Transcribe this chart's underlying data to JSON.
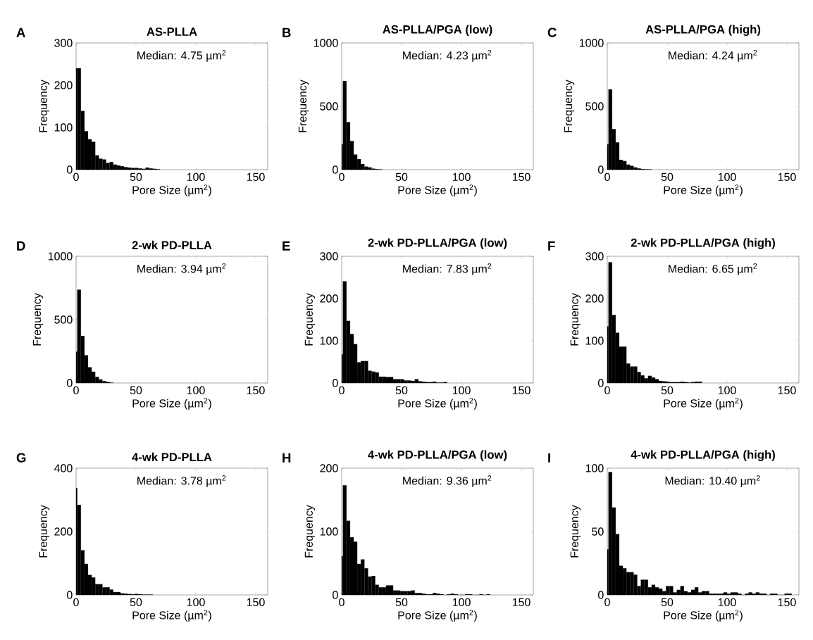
{
  "chart_data": [
    {
      "type": "histogram",
      "title": "AS-PLLA",
      "xlabel": "Pore Size (µm$^{2}$)",
      "ylabel": "Frequency",
      "annotations": [
        "A",
        "Median: 4.75 µm$^{2}$"
      ],
      "color": "#000000",
      "xlim": [
        0,
        160
      ],
      "ylim": [
        0,
        300
      ],
      "xticks": [
        0,
        50,
        100,
        150
      ],
      "yticks": [
        0,
        100,
        200,
        300
      ],
      "bins": [
        0,
        1,
        4,
        7,
        10,
        13,
        16,
        19,
        22,
        25,
        28,
        31,
        34,
        37,
        40,
        43,
        46,
        49,
        52,
        55,
        58,
        61,
        64,
        67,
        70
      ],
      "values": [
        240,
        240,
        139,
        91,
        72,
        66,
        34,
        26,
        24,
        16,
        18,
        12,
        10,
        8,
        6,
        5,
        4,
        4,
        3,
        2,
        5,
        3,
        2,
        1
      ]
    },
    {
      "type": "histogram",
      "title": "AS-PLLA/PGA (low)",
      "xlabel": "Pore Size (µm$^{2}$)",
      "ylabel": "Frequency",
      "annotations": [
        "B",
        "Median: 4.23 µm$^{2}$"
      ],
      "color": "#000000",
      "xlim": [
        0,
        160
      ],
      "ylim": [
        0,
        1000
      ],
      "xticks": [
        0,
        50,
        100,
        150
      ],
      "yticks": [
        0,
        500,
        1000
      ],
      "bins": [
        0,
        1,
        4,
        7,
        10,
        13,
        16,
        19,
        22,
        25,
        28,
        31,
        34
      ],
      "values": [
        200,
        700,
        375,
        226,
        119,
        83,
        44,
        24,
        18,
        8,
        4,
        2
      ]
    },
    {
      "type": "histogram",
      "title": "AS-PLLA/PGA (high)",
      "xlabel": "Pore Size (µm$^{2}$)",
      "ylabel": "Frequency",
      "annotations": [
        "C",
        "Median: 4.24 µm$^{2}$"
      ],
      "color": "#000000",
      "xlim": [
        0,
        160
      ],
      "ylim": [
        0,
        1000
      ],
      "xticks": [
        0,
        50,
        100,
        150
      ],
      "yticks": [
        0,
        500,
        1000
      ],
      "bins": [
        0,
        1,
        4,
        7,
        10,
        13,
        16,
        19,
        22,
        25,
        28,
        31,
        34,
        37
      ],
      "values": [
        200,
        634,
        320,
        215,
        77,
        68,
        40,
        30,
        18,
        10,
        5,
        3,
        2
      ]
    },
    {
      "type": "histogram",
      "title": "2-wk PD-PLLA",
      "xlabel": "Pore Size (µm$^{2}$)",
      "ylabel": "Frequency",
      "annotations": [
        "D",
        "Median: 3.94 µm$^{2}$"
      ],
      "color": "#000000",
      "xlim": [
        0,
        160
      ],
      "ylim": [
        0,
        1000
      ],
      "xticks": [
        0,
        50,
        100,
        150
      ],
      "yticks": [
        0,
        500,
        1000
      ],
      "bins": [
        0,
        1,
        4,
        7,
        10,
        13,
        16,
        19,
        22,
        25,
        28,
        31
      ],
      "values": [
        247,
        736,
        371,
        219,
        124,
        89,
        48,
        28,
        15,
        8,
        3
      ]
    },
    {
      "type": "histogram",
      "title": "2-wk PD-PLLA/PGA (low)",
      "xlabel": "Pore Size (µm$^{2}$)",
      "ylabel": "Frequency",
      "annotations": [
        "E",
        "Median: 7.83 µm$^{2}$"
      ],
      "color": "#000000",
      "xlim": [
        0,
        160
      ],
      "ylim": [
        0,
        300
      ],
      "xticks": [
        0,
        50,
        100,
        150
      ],
      "yticks": [
        0,
        100,
        200,
        300
      ],
      "bins": [
        0,
        1,
        4,
        7,
        10,
        13,
        16,
        19,
        22,
        25,
        28,
        31,
        34,
        37,
        40,
        43,
        46,
        49,
        52,
        55,
        58,
        61,
        64,
        67,
        70,
        73,
        76,
        79,
        82,
        85,
        88
      ],
      "values": [
        68,
        241,
        147,
        116,
        92,
        49,
        52,
        52,
        29,
        27,
        25,
        15,
        15,
        14,
        14,
        9,
        9,
        9,
        6,
        6,
        5,
        9,
        4,
        3,
        2,
        2,
        3,
        1,
        1,
        2
      ]
    },
    {
      "type": "histogram",
      "title": "2-wk PD-PLLA/PGA (high)",
      "xlabel": "Pore Size (µm$^{2}$)",
      "ylabel": "Frequency",
      "annotations": [
        "F",
        "Median: 6.65 µm$^{2}$"
      ],
      "color": "#000000",
      "xlim": [
        0,
        160
      ],
      "ylim": [
        0,
        300
      ],
      "xticks": [
        0,
        50,
        100,
        150
      ],
      "yticks": [
        0,
        100,
        200,
        300
      ],
      "bins": [
        0,
        1,
        4,
        7,
        10,
        13,
        16,
        19,
        22,
        25,
        28,
        31,
        34,
        37,
        40,
        43,
        46,
        49,
        52,
        55,
        58,
        61,
        64,
        67,
        70,
        73,
        76,
        79
      ],
      "values": [
        134,
        286,
        161,
        119,
        86,
        86,
        46,
        39,
        39,
        26,
        18,
        11,
        17,
        13,
        9,
        5,
        4,
        3,
        2,
        2,
        2,
        3,
        2,
        1,
        2,
        3,
        3
      ]
    },
    {
      "type": "histogram",
      "title": "4-wk PD-PLLA",
      "xlabel": "Pore Size (µm$^{2}$)",
      "ylabel": "Frequency",
      "annotations": [
        "G",
        "Median: 3.78 µm$^{2}$"
      ],
      "color": "#000000",
      "xlim": [
        0,
        160
      ],
      "ylim": [
        0,
        400
      ],
      "xticks": [
        0,
        50,
        100,
        150
      ],
      "yticks": [
        0,
        200,
        400
      ],
      "bins": [
        0,
        1,
        4,
        7,
        10,
        13,
        16,
        19,
        22,
        25,
        28,
        31,
        34,
        37,
        40,
        43,
        46,
        49,
        52,
        55,
        58,
        61,
        64
      ],
      "values": [
        337,
        284,
        141,
        98,
        63,
        55,
        34,
        34,
        24,
        24,
        17,
        9,
        9,
        5,
        4,
        3,
        2,
        3,
        2,
        1,
        1,
        1
      ]
    },
    {
      "type": "histogram",
      "title": "4-wk PD-PLLA/PGA (low)",
      "xlabel": "Pore Size (µm$^{2}$)",
      "ylabel": "Frequency",
      "annotations": [
        "H",
        "Median: 9.36 µm$^{2}$"
      ],
      "color": "#000000",
      "xlim": [
        0,
        160
      ],
      "ylim": [
        0,
        200
      ],
      "xticks": [
        0,
        50,
        100,
        150
      ],
      "yticks": [
        0,
        100,
        200
      ],
      "bins": [
        0,
        1,
        4,
        7,
        10,
        13,
        16,
        19,
        22,
        25,
        28,
        31,
        34,
        37,
        40,
        43,
        46,
        49,
        52,
        55,
        58,
        61,
        64,
        67,
        70,
        73,
        76,
        79,
        82,
        85,
        88,
        91,
        94,
        97,
        100,
        103,
        106,
        109,
        112,
        115,
        118,
        121,
        124
      ],
      "values": [
        61,
        173,
        117,
        91,
        84,
        49,
        56,
        42,
        29,
        30,
        16,
        12,
        12,
        15,
        15,
        7,
        7,
        6,
        6,
        6,
        7,
        3,
        3,
        2,
        1,
        1,
        3,
        2,
        1,
        0,
        1,
        2,
        1,
        0,
        0,
        1,
        1,
        0,
        0,
        1,
        0,
        1
      ]
    },
    {
      "type": "histogram",
      "title": "4-wk PD-PLLA/PGA (high)",
      "xlabel": "Pore Size (µm$^{2}$)",
      "ylabel": "Frequency",
      "annotations": [
        "I",
        "Median: 10.40 µm$^{2}$"
      ],
      "color": "#000000",
      "xlim": [
        0,
        160
      ],
      "ylim": [
        0,
        100
      ],
      "xticks": [
        0,
        50,
        100,
        150
      ],
      "yticks": [
        0,
        50,
        100
      ],
      "bins": [
        0,
        1,
        4,
        7,
        10,
        13,
        16,
        19,
        22,
        25,
        28,
        31,
        34,
        37,
        40,
        43,
        46,
        49,
        52,
        55,
        58,
        61,
        64,
        67,
        70,
        73,
        76,
        79,
        82,
        85,
        88,
        91,
        94,
        97,
        100,
        103,
        106,
        109,
        112,
        115,
        118,
        121,
        124,
        127,
        130,
        133,
        136,
        139,
        142,
        145,
        148,
        151,
        154
      ],
      "values": [
        36,
        97,
        69,
        48,
        23,
        21,
        18,
        18,
        16,
        7,
        12,
        12,
        6,
        8,
        6,
        5,
        3,
        7,
        7,
        2,
        4,
        7,
        3,
        2,
        4,
        6,
        2,
        3,
        3,
        1,
        1,
        1,
        1,
        2,
        1,
        2,
        2,
        1,
        0,
        1,
        2,
        1,
        2,
        1,
        1,
        0,
        1,
        1,
        0,
        0,
        1,
        1
      ]
    }
  ]
}
